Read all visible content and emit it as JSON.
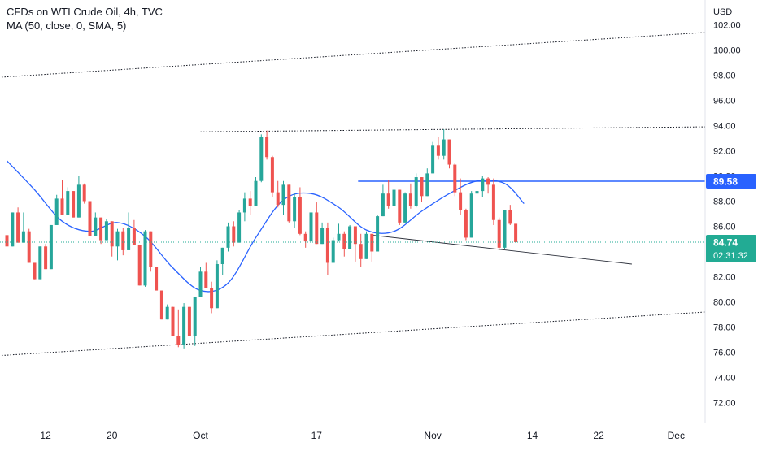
{
  "legend": {
    "title": "CFDs on WTI Crude Oil, 4h, TVC",
    "indicator": "MA (50, close, 0, SMA, 5)"
  },
  "colors": {
    "up": "#26a69a",
    "down": "#ef5350",
    "ma": "#2962ff",
    "hline": "#2962ff",
    "trend": "#131722",
    "price_line": "#22ab94",
    "axis_text": "#131722"
  },
  "chart_data": {
    "type": "candlestick",
    "symbol": "CFDs on WTI Crude Oil, 4h, TVC",
    "currency": "USD",
    "ylim": [
      70,
      103
    ],
    "y_ticks": [
      102,
      100,
      98,
      96,
      94,
      92,
      90,
      88,
      86,
      84,
      82,
      80,
      78,
      76,
      74,
      72
    ],
    "x_ticks": [
      {
        "label": "12",
        "bar": 7
      },
      {
        "label": "20",
        "bar": 19
      },
      {
        "label": "Oct",
        "bar": 35
      },
      {
        "label": "17",
        "bar": 56
      },
      {
        "label": "Nov",
        "bar": 77
      },
      {
        "label": "14",
        "bar": 95
      },
      {
        "label": "22",
        "bar": 107
      },
      {
        "label": "Dec",
        "bar": 121
      }
    ],
    "candles": [
      [
        85.3,
        85.3,
        84.4,
        84.4
      ],
      [
        84.4,
        87.1,
        84.4,
        87.1
      ],
      [
        87.1,
        87.5,
        84.7,
        84.7
      ],
      [
        84.7,
        87.1,
        84.7,
        85.6
      ],
      [
        85.6,
        85.8,
        83.1,
        83.1
      ],
      [
        83.1,
        83.1,
        81.8,
        81.8
      ],
      [
        81.8,
        84.4,
        81.8,
        84.4
      ],
      [
        84.4,
        84.6,
        82.6,
        82.6
      ],
      [
        82.6,
        86.1,
        82.6,
        86.1
      ],
      [
        86.1,
        88.5,
        86.1,
        88.2
      ],
      [
        88.2,
        89.7,
        86.9,
        86.9
      ],
      [
        86.9,
        89.1,
        86.9,
        88.8
      ],
      [
        88.8,
        88.8,
        86.7,
        86.7
      ],
      [
        86.7,
        90.0,
        86.7,
        89.3
      ],
      [
        89.3,
        89.4,
        87.8,
        88.0
      ],
      [
        88.0,
        88.0,
        85.2,
        85.2
      ],
      [
        85.2,
        87.1,
        85.2,
        86.7
      ],
      [
        86.7,
        86.7,
        84.6,
        84.9
      ],
      [
        84.9,
        86.6,
        84.9,
        86.4
      ],
      [
        86.4,
        86.4,
        83.6,
        84.4
      ],
      [
        84.4,
        85.8,
        83.3,
        85.6
      ],
      [
        85.6,
        85.9,
        83.7,
        84.1
      ],
      [
        84.1,
        87.1,
        84.1,
        85.9
      ],
      [
        85.9,
        86.5,
        84.5,
        84.5
      ],
      [
        84.5,
        84.5,
        81.3,
        81.3
      ],
      [
        81.3,
        85.7,
        81.2,
        85.6
      ],
      [
        85.6,
        85.6,
        82.4,
        82.8
      ],
      [
        82.8,
        82.8,
        80.9,
        80.9
      ],
      [
        80.9,
        80.9,
        78.6,
        78.6
      ],
      [
        78.6,
        79.8,
        78.6,
        79.6
      ],
      [
        79.6,
        79.6,
        77.3,
        77.3
      ],
      [
        77.3,
        79.4,
        76.4,
        76.6
      ],
      [
        76.6,
        79.9,
        76.3,
        79.6
      ],
      [
        79.6,
        79.6,
        77.3,
        77.3
      ],
      [
        77.3,
        80.4,
        76.5,
        80.4
      ],
      [
        80.4,
        82.8,
        80.4,
        82.4
      ],
      [
        82.4,
        83.1,
        81.1,
        81.1
      ],
      [
        81.1,
        81.6,
        79.1,
        79.5
      ],
      [
        79.5,
        83.3,
        79.5,
        83.0
      ],
      [
        83.0,
        84.3,
        82.1,
        84.3
      ],
      [
        84.3,
        86.3,
        84.0,
        86.0
      ],
      [
        86.0,
        86.4,
        84.4,
        84.7
      ],
      [
        84.7,
        87.3,
        84.7,
        87.1
      ],
      [
        87.1,
        88.7,
        86.4,
        88.2
      ],
      [
        88.2,
        88.8,
        86.9,
        87.6
      ],
      [
        87.6,
        89.9,
        87.6,
        89.6
      ],
      [
        89.6,
        93.3,
        89.5,
        93.1
      ],
      [
        93.1,
        93.6,
        91.3,
        91.5
      ],
      [
        91.5,
        91.6,
        88.3,
        88.7
      ],
      [
        88.7,
        89.6,
        87.5,
        87.7
      ],
      [
        87.7,
        89.6,
        86.9,
        89.3
      ],
      [
        89.3,
        89.3,
        86.3,
        86.4
      ],
      [
        86.4,
        88.6,
        85.9,
        88.3
      ],
      [
        88.3,
        89.1,
        85.3,
        85.4
      ],
      [
        85.4,
        85.6,
        84.3,
        84.8
      ],
      [
        84.8,
        87.8,
        84.8,
        87.1
      ],
      [
        87.1,
        87.9,
        84.6,
        84.6
      ],
      [
        84.6,
        86.3,
        84.6,
        85.9
      ],
      [
        85.9,
        86.3,
        82.1,
        83.1
      ],
      [
        83.1,
        85.1,
        83.1,
        84.9
      ],
      [
        84.9,
        86.2,
        84.8,
        85.4
      ],
      [
        85.4,
        85.6,
        83.6,
        84.2
      ],
      [
        84.2,
        86.1,
        84.2,
        86.0
      ],
      [
        86.0,
        86.0,
        83.2,
        84.6
      ],
      [
        84.6,
        85.4,
        82.8,
        83.4
      ],
      [
        83.4,
        85.6,
        83.4,
        85.4
      ],
      [
        85.4,
        85.4,
        83.2,
        84.0
      ],
      [
        84.0,
        86.9,
        84.0,
        86.8
      ],
      [
        86.8,
        89.3,
        86.8,
        88.6
      ],
      [
        88.6,
        89.7,
        87.4,
        87.6
      ],
      [
        87.6,
        89.3,
        87.1,
        88.9
      ],
      [
        88.9,
        88.9,
        86.1,
        86.3
      ],
      [
        86.3,
        88.7,
        86.3,
        88.6
      ],
      [
        88.6,
        89.4,
        87.4,
        87.6
      ],
      [
        87.6,
        90.2,
        87.5,
        89.9
      ],
      [
        89.9,
        89.9,
        87.9,
        88.4
      ],
      [
        88.4,
        90.6,
        88.4,
        90.2
      ],
      [
        90.2,
        92.7,
        90.2,
        92.4
      ],
      [
        92.4,
        93.1,
        91.3,
        91.6
      ],
      [
        91.6,
        93.7,
        91.3,
        92.9
      ],
      [
        92.9,
        92.9,
        90.6,
        90.9
      ],
      [
        90.9,
        91.0,
        88.4,
        88.7
      ],
      [
        88.7,
        89.8,
        86.9,
        87.3
      ],
      [
        87.3,
        87.4,
        84.9,
        85.1
      ],
      [
        85.1,
        88.8,
        85.1,
        88.6
      ],
      [
        88.6,
        89.6,
        87.9,
        88.8
      ],
      [
        88.8,
        90.0,
        88.3,
        89.8
      ],
      [
        89.8,
        89.9,
        88.6,
        89.3
      ],
      [
        89.3,
        89.8,
        86.1,
        86.5
      ],
      [
        86.5,
        86.7,
        84.1,
        84.3
      ],
      [
        84.3,
        87.3,
        84.2,
        87.3
      ],
      [
        87.3,
        87.7,
        86.1,
        86.2
      ],
      [
        86.2,
        86.2,
        84.7,
        84.74
      ]
    ],
    "ma_series": [
      {
        "bar": 0,
        "value": 91.2
      },
      {
        "bar": 5,
        "value": 88.9
      },
      {
        "bar": 10,
        "value": 86.4
      },
      {
        "bar": 15,
        "value": 85.6
      },
      {
        "bar": 20,
        "value": 86.3
      },
      {
        "bar": 25,
        "value": 85.2
      },
      {
        "bar": 30,
        "value": 82.7
      },
      {
        "bar": 35,
        "value": 80.9
      },
      {
        "bar": 40,
        "value": 81.5
      },
      {
        "bar": 45,
        "value": 85.1
      },
      {
        "bar": 50,
        "value": 88.1
      },
      {
        "bar": 55,
        "value": 88.6
      },
      {
        "bar": 60,
        "value": 87.5
      },
      {
        "bar": 65,
        "value": 85.7
      },
      {
        "bar": 70,
        "value": 85.6
      },
      {
        "bar": 75,
        "value": 87.2
      },
      {
        "bar": 80,
        "value": 88.6
      },
      {
        "bar": 85,
        "value": 89.6
      },
      {
        "bar": 90,
        "value": 89.4
      },
      {
        "bar": 93.5,
        "value": 87.8
      }
    ],
    "trendlines": [
      {
        "from": {
          "bar": -2.5,
          "value": 97.8
        },
        "to": {
          "bar": 126.5,
          "value": 101.4
        },
        "style": "dotted"
      },
      {
        "from": {
          "bar": -2.5,
          "value": 75.7
        },
        "to": {
          "bar": 126.5,
          "value": 79.2
        },
        "style": "dotted"
      },
      {
        "from": {
          "bar": 35,
          "value": 93.5
        },
        "to": {
          "bar": 126.5,
          "value": 93.9
        },
        "style": "dotted"
      },
      {
        "from": {
          "bar": 66,
          "value": 85.3
        },
        "to": {
          "bar": 113,
          "value": 83.0
        },
        "style": "solid"
      },
      {
        "from": {
          "bar": 63.5,
          "value": 89.58
        },
        "to": {
          "bar": 126.5,
          "value": 89.58
        },
        "style": "solid-blue"
      }
    ],
    "labels": {
      "level": "89.58",
      "last_price": "84.74",
      "countdown": "02:31:32"
    }
  }
}
